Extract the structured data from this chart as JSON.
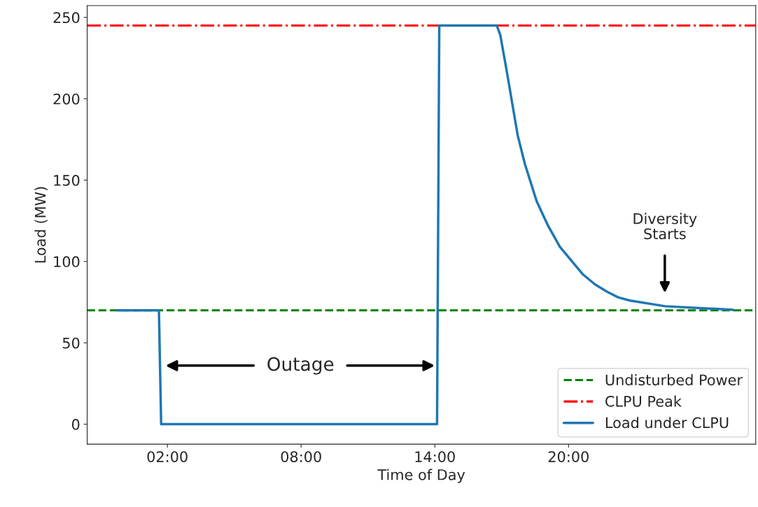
{
  "chart_data": {
    "type": "line",
    "xlabel": "Time of Day",
    "ylabel": "Load (MW)",
    "series": [
      {
        "name": "Load under CLPU",
        "color": "#1f77b4",
        "line_style": "solid",
        "x": [
          -0.26,
          1.62,
          1.72,
          14.1,
          14.2,
          16.78,
          16.94,
          17.24,
          17.5,
          17.72,
          18.04,
          18.57,
          19.08,
          19.61,
          20.65,
          21.18,
          21.72,
          22.22,
          22.75,
          24.33,
          27.38
        ],
        "values": [
          70,
          70,
          0,
          0,
          245,
          245,
          239,
          216,
          195,
          177.5,
          160,
          137,
          122,
          109,
          92,
          86,
          81.5,
          78,
          76,
          72.5,
          70.3
        ]
      }
    ],
    "ref_lines": [
      {
        "axis": "y",
        "value": 70,
        "label": "Undisturbed Power",
        "color": "#008000",
        "line_style": "dashed"
      },
      {
        "axis": "y",
        "value": 245,
        "label": "CLPU Peak",
        "color": "#ff0000",
        "line_style": "dashdot"
      }
    ],
    "annotations": [
      "Outage",
      "Diversity\nStarts"
    ],
    "xlim": [
      -1.6,
      28.4
    ],
    "xticks": [
      {
        "value": 2,
        "label": "02:00"
      },
      {
        "value": 8,
        "label": "08:00"
      },
      {
        "value": 14,
        "label": "14:00"
      },
      {
        "value": 20,
        "label": "20:00"
      }
    ],
    "ylim": [
      -12.25,
      257.25
    ],
    "yticks": [
      0,
      50,
      100,
      150,
      200,
      250
    ],
    "legend": "bottom right",
    "grid": false
  }
}
